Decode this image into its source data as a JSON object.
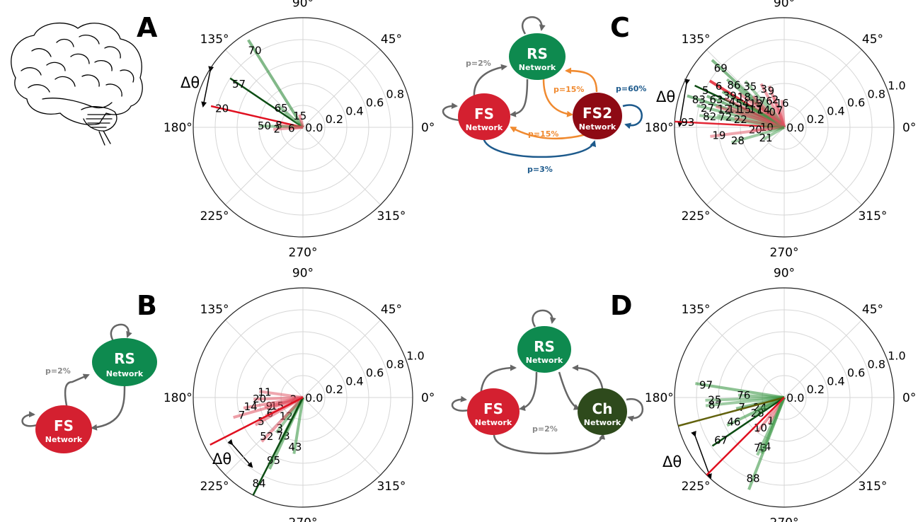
{
  "figure": {
    "colors": {
      "rs": "#0e8a4f",
      "fs": "#d42030",
      "fs2": "#8e0a14",
      "ch": "#2e4a1c",
      "gray_edge": "#666666",
      "orange_edge": "#f08a30",
      "blue_edge": "#1d5a8c"
    },
    "delta_symbol": "Δθ",
    "panels": [
      {
        "letter": "A"
      },
      {
        "letter": "C"
      },
      {
        "letter": "B"
      },
      {
        "letter": "D"
      }
    ],
    "networks": {
      "A": {
        "icon": "brain-icon"
      },
      "B": {
        "nodes": [
          {
            "id": "RS",
            "title": "RS",
            "sub": "Network",
            "color": "#0e8a4f"
          },
          {
            "id": "FS",
            "title": "FS",
            "sub": "Network",
            "color": "#d42030"
          }
        ],
        "edge_labels": [
          {
            "text": "p=2%",
            "color": "#888888"
          }
        ]
      },
      "C": {
        "nodes": [
          {
            "id": "RS",
            "title": "RS",
            "sub": "Network",
            "color": "#0e8a4f"
          },
          {
            "id": "FS",
            "title": "FS",
            "sub": "Network",
            "color": "#d42030"
          },
          {
            "id": "FS2",
            "title": "FS2",
            "sub": "Network",
            "color": "#8e0a14"
          }
        ],
        "edge_labels": [
          {
            "text": "p=2%",
            "color": "#888888"
          },
          {
            "text": "p=15%",
            "color": "#f08a30"
          },
          {
            "text": "p=60%",
            "color": "#1d5a8c"
          },
          {
            "text": "p=15%",
            "color": "#f08a30"
          },
          {
            "text": "p=3%",
            "color": "#1d5a8c"
          }
        ]
      },
      "D": {
        "nodes": [
          {
            "id": "RS",
            "title": "RS",
            "sub": "Network",
            "color": "#0e8a4f"
          },
          {
            "id": "FS",
            "title": "FS",
            "sub": "Network",
            "color": "#d42030"
          },
          {
            "id": "Ch",
            "title": "Ch",
            "sub": "Network",
            "color": "#2e4a1c"
          }
        ],
        "edge_labels": [
          {
            "text": "p=2%",
            "color": "#888888"
          }
        ]
      }
    }
  },
  "chart_data": [
    {
      "panel": "A",
      "type": "polar",
      "angular_ticks": [
        "0°",
        "45°",
        "90°",
        "135°",
        "180°",
        "225°",
        "270°",
        "315°"
      ],
      "radial_ticks": [
        "0.0",
        "0.2",
        "0.4",
        "0.6",
        "0.8"
      ],
      "rlim": [
        0,
        1.0
      ],
      "grid": true,
      "vectors": [
        {
          "label": "70",
          "angle_deg": 122,
          "r": 0.94,
          "color": "#2e8b3a",
          "alpha": 0.6
        },
        {
          "label": "57",
          "angle_deg": 146,
          "r": 0.8,
          "color": "#0d4d14",
          "alpha": 1.0
        },
        {
          "label": "65",
          "angle_deg": 139,
          "r": 0.3,
          "color": "#3f9a4a",
          "alpha": 0.55
        },
        {
          "label": "15",
          "angle_deg": 105,
          "r": 0.12,
          "color": "#e05060",
          "alpha": 0.6
        },
        {
          "label": "20",
          "angle_deg": 167,
          "r": 0.86,
          "color": "#e01020",
          "alpha": 1.0
        },
        {
          "label": "8",
          "angle_deg": 175,
          "r": 0.25,
          "color": "#e05060",
          "alpha": 0.55
        },
        {
          "label": "50",
          "angle_deg": 178,
          "r": 0.4,
          "color": "#3f9a4a",
          "alpha": 0.5
        },
        {
          "label": "2",
          "angle_deg": 184,
          "r": 0.27,
          "color": "#e05060",
          "alpha": 0.5
        },
        {
          "label": "6",
          "angle_deg": 186,
          "r": 0.12,
          "color": "#e05060",
          "alpha": 0.45
        }
      ]
    },
    {
      "panel": "C",
      "type": "polar",
      "angular_ticks": [
        "0°",
        "45°",
        "90°",
        "135°",
        "180°",
        "225°",
        "270°",
        "315°"
      ],
      "radial_ticks": [
        "0.0",
        "0.2",
        "0.4",
        "0.6",
        "0.8",
        "1.0"
      ],
      "rlim": [
        0,
        1.0
      ],
      "grid": true,
      "vectors": [
        {
          "label": "69",
          "angle_deg": 137,
          "r": 0.9,
          "color": "#2e8b3a",
          "alpha": 0.6
        },
        {
          "label": "6",
          "angle_deg": 148,
          "r": 0.8,
          "color": "#e01020",
          "alpha": 0.8
        },
        {
          "label": "86",
          "angle_deg": 140,
          "r": 0.68,
          "color": "#2e8b3a",
          "alpha": 0.55
        },
        {
          "label": "35",
          "angle_deg": 130,
          "r": 0.55,
          "color": "#3f9a4a",
          "alpha": 0.5
        },
        {
          "label": "3",
          "angle_deg": 118,
          "r": 0.45,
          "color": "#e05060",
          "alpha": 0.55
        },
        {
          "label": "9",
          "angle_deg": 110,
          "r": 0.4,
          "color": "#e05060",
          "alpha": 0.55
        },
        {
          "label": "5",
          "angle_deg": 155,
          "r": 0.9,
          "color": "#0d4d14",
          "alpha": 1.0
        },
        {
          "label": "39",
          "angle_deg": 150,
          "r": 0.65,
          "color": "#2e8b3a",
          "alpha": 0.6
        },
        {
          "label": "18",
          "angle_deg": 143,
          "r": 0.52,
          "color": "#e05060",
          "alpha": 0.55
        },
        {
          "label": "1",
          "angle_deg": 135,
          "r": 0.4,
          "color": "#e05060",
          "alpha": 0.55
        },
        {
          "label": "76",
          "angle_deg": 125,
          "r": 0.33,
          "color": "#3f9a4a",
          "alpha": 0.5
        },
        {
          "label": "2",
          "angle_deg": 108,
          "r": 0.3,
          "color": "#e05060",
          "alpha": 0.5
        },
        {
          "label": "16",
          "angle_deg": 95,
          "r": 0.25,
          "color": "#e05060",
          "alpha": 0.5
        },
        {
          "label": "63",
          "angle_deg": 158,
          "r": 0.76,
          "color": "#2e8b3a",
          "alpha": 0.6
        },
        {
          "label": "4",
          "angle_deg": 154,
          "r": 0.6,
          "color": "#e05060",
          "alpha": 0.55
        },
        {
          "label": "54",
          "angle_deg": 150,
          "r": 0.5,
          "color": "#3f9a4a",
          "alpha": 0.55
        },
        {
          "label": "13",
          "angle_deg": 140,
          "r": 0.38,
          "color": "#e05060",
          "alpha": 0.5
        },
        {
          "label": "83",
          "angle_deg": 162,
          "r": 0.93,
          "color": "#2e8b3a",
          "alpha": 0.6
        },
        {
          "label": "27",
          "angle_deg": 166,
          "r": 0.82,
          "color": "#3f9a4a",
          "alpha": 0.55
        },
        {
          "label": "12",
          "angle_deg": 163,
          "r": 0.65,
          "color": "#e05060",
          "alpha": 0.55
        },
        {
          "label": "11",
          "angle_deg": 160,
          "r": 0.55,
          "color": "#e05060",
          "alpha": 0.5
        },
        {
          "label": "15",
          "angle_deg": 156,
          "r": 0.45,
          "color": "#e05060",
          "alpha": 0.5
        },
        {
          "label": "17",
          "angle_deg": 148,
          "r": 0.35,
          "color": "#3f9a4a",
          "alpha": 0.5
        },
        {
          "label": "14",
          "angle_deg": 140,
          "r": 0.28,
          "color": "#e05060",
          "alpha": 0.5
        },
        {
          "label": "0",
          "angle_deg": 128,
          "r": 0.2,
          "color": "#e05060",
          "alpha": 0.5
        },
        {
          "label": "7",
          "angle_deg": 105,
          "r": 0.18,
          "color": "#e05060",
          "alpha": 0.5
        },
        {
          "label": "93",
          "angle_deg": 177,
          "r": 1.0,
          "color": "#e01020",
          "alpha": 0.9
        },
        {
          "label": "82",
          "angle_deg": 172,
          "r": 0.78,
          "color": "#3f9a4a",
          "alpha": 0.5
        },
        {
          "label": "72",
          "angle_deg": 170,
          "r": 0.62,
          "color": "#3f9a4a",
          "alpha": 0.5
        },
        {
          "label": "22",
          "angle_deg": 170,
          "r": 0.46,
          "color": "#e05060",
          "alpha": 0.5
        },
        {
          "label": "20",
          "angle_deg": 185,
          "r": 0.3,
          "color": "#e05060",
          "alpha": 0.5
        },
        {
          "label": "10",
          "angle_deg": 180,
          "r": 0.18,
          "color": "#3f9a4a",
          "alpha": 0.5
        },
        {
          "label": "19",
          "angle_deg": 187,
          "r": 0.68,
          "color": "#e05060",
          "alpha": 0.5
        },
        {
          "label": "28",
          "angle_deg": 196,
          "r": 0.5,
          "color": "#3f9a4a",
          "alpha": 0.5
        },
        {
          "label": "21",
          "angle_deg": 210,
          "r": 0.22,
          "color": "#3f9a4a",
          "alpha": 0.5
        }
      ]
    },
    {
      "panel": "B",
      "type": "polar",
      "angular_ticks": [
        "0°",
        "45°",
        "90°",
        "135°",
        "180°",
        "225°",
        "270°",
        "315°"
      ],
      "radial_ticks": [
        "0.0",
        "0.2",
        "0.4",
        "0.6",
        "0.8",
        "1.0"
      ],
      "rlim": [
        0,
        1.0
      ],
      "grid": true,
      "vectors": [
        {
          "label": "11",
          "angle_deg": 172,
          "r": 0.4,
          "color": "#e05060",
          "alpha": 0.5
        },
        {
          "label": "2",
          "angle_deg": 190,
          "r": 0.1,
          "color": "#e05060",
          "alpha": 0.55
        },
        {
          "label": "20",
          "angle_deg": 182,
          "r": 0.45,
          "color": "#e05060",
          "alpha": 0.55
        },
        {
          "label": "9",
          "angle_deg": 194,
          "r": 0.36,
          "color": "#e05060",
          "alpha": 0.55
        },
        {
          "label": "15",
          "angle_deg": 198,
          "r": 0.28,
          "color": "#e05060",
          "alpha": 0.55
        },
        {
          "label": "14",
          "angle_deg": 190,
          "r": 0.55,
          "color": "#e05060",
          "alpha": 0.55
        },
        {
          "label": "7",
          "angle_deg": 196,
          "r": 0.66,
          "color": "#e05060",
          "alpha": 0.55
        },
        {
          "label": "6",
          "angle_deg": 206,
          "r": 0.38,
          "color": "#e05060",
          "alpha": 0.55
        },
        {
          "label": "12",
          "angle_deg": 228,
          "r": 0.26,
          "color": "#3f9a4a",
          "alpha": 0.5
        },
        {
          "label": "5",
          "angle_deg": 210,
          "r": 0.5,
          "color": "#e05060",
          "alpha": 0.55
        },
        {
          "label": "3",
          "angle_deg": 233,
          "r": 0.4,
          "color": "#3f9a4a",
          "alpha": 0.5
        },
        {
          "label": "52",
          "angle_deg": 227,
          "r": 0.55,
          "color": "#e05060",
          "alpha": 0.55
        },
        {
          "label": "73",
          "angle_deg": 243,
          "r": 0.45,
          "color": "#3f9a4a",
          "alpha": 0.55
        },
        {
          "label": "43",
          "angle_deg": 261,
          "r": 0.52,
          "color": "#3f9a4a",
          "alpha": 0.6
        },
        {
          "label": "95",
          "angle_deg": 245,
          "r": 0.72,
          "color": "#3f9a4a",
          "alpha": 0.6
        },
        {
          "label": "84",
          "angle_deg": 243,
          "r": 1.0,
          "color": "#0d4d14",
          "alpha": 1.0
        },
        {
          "label": "",
          "angle_deg": 207,
          "r": 0.95,
          "color": "#e01020",
          "alpha": 1.0
        }
      ]
    },
    {
      "panel": "D",
      "type": "polar",
      "angular_ticks": [
        "0°",
        "45°",
        "90°",
        "135°",
        "180°",
        "225°",
        "270°",
        "315°"
      ],
      "radial_ticks": [
        "0.0",
        "0.2",
        "0.4",
        "0.6",
        "0.8",
        "1.0"
      ],
      "rlim": [
        0,
        1.0
      ],
      "grid": true,
      "vectors": [
        {
          "label": "97",
          "angle_deg": 171,
          "r": 0.82,
          "color": "#3f9a4a",
          "alpha": 0.6
        },
        {
          "label": "76",
          "angle_deg": 177,
          "r": 0.42,
          "color": "#3f9a4a",
          "alpha": 0.55
        },
        {
          "label": "25",
          "angle_deg": 182,
          "r": 0.72,
          "color": "#3f9a4a",
          "alpha": 0.5
        },
        {
          "label": "87",
          "angle_deg": 186,
          "r": 0.72,
          "color": "#3f9a4a",
          "alpha": 0.5
        },
        {
          "label": "7",
          "angle_deg": 193,
          "r": 0.45,
          "color": "#2e8b3a",
          "alpha": 0.55
        },
        {
          "label": "24",
          "angle_deg": 202,
          "r": 0.27,
          "color": "#3f9a4a",
          "alpha": 0.55
        },
        {
          "label": "28",
          "angle_deg": 210,
          "r": 0.32,
          "color": "#3f9a4a",
          "alpha": 0.55
        },
        {
          "label": "46",
          "angle_deg": 206,
          "r": 0.58,
          "color": "#3f9a4a",
          "alpha": 0.6
        },
        {
          "label": "1",
          "angle_deg": 240,
          "r": 0.28,
          "color": "#e05060",
          "alpha": 0.55
        },
        {
          "label": "10",
          "angle_deg": 232,
          "r": 0.4,
          "color": "#e05060",
          "alpha": 0.55
        },
        {
          "label": "67",
          "angle_deg": 214,
          "r": 0.79,
          "color": "#0d4d14",
          "alpha": 1.0
        },
        {
          "label": "14",
          "angle_deg": 248,
          "r": 0.55,
          "color": "#3f9a4a",
          "alpha": 0.6
        },
        {
          "label": "73",
          "angle_deg": 245,
          "r": 0.58,
          "color": "#3f9a4a",
          "alpha": 0.55
        },
        {
          "label": "88",
          "angle_deg": 249,
          "r": 0.9,
          "color": "#3f9a4a",
          "alpha": 0.6
        },
        {
          "label": "",
          "angle_deg": 195,
          "r": 1.0,
          "color": "#5a5a00",
          "alpha": 0.95
        },
        {
          "label": "",
          "angle_deg": 225,
          "r": 1.0,
          "color": "#e01020",
          "alpha": 1.0
        }
      ]
    }
  ]
}
